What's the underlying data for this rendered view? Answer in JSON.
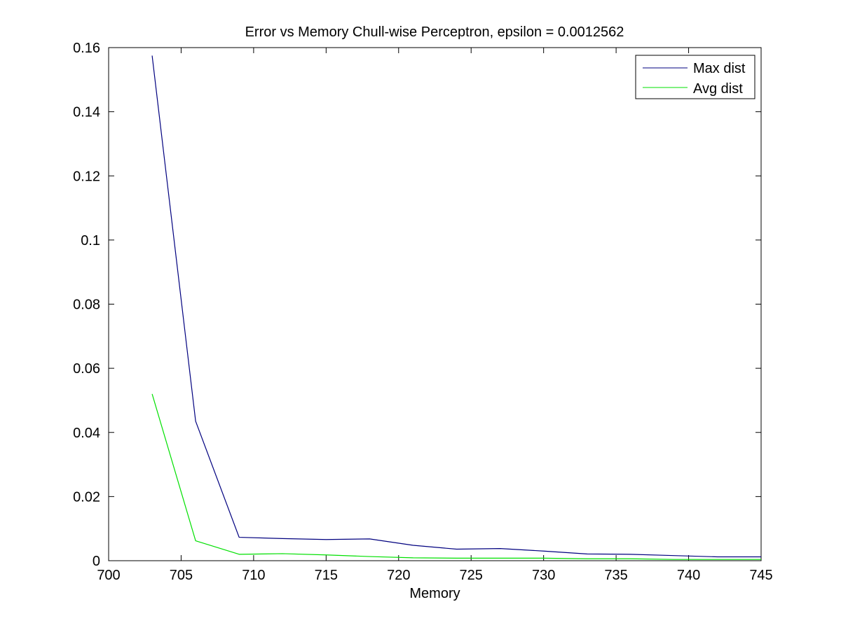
{
  "chart_data": {
    "type": "line",
    "title": "Error vs Memory Chull-wise Perceptron, epsilon = 0.0012562",
    "xlabel": "Memory",
    "ylabel": "",
    "xlim": [
      700,
      745
    ],
    "ylim": [
      0,
      0.16
    ],
    "xticks": [
      700,
      705,
      710,
      715,
      720,
      725,
      730,
      735,
      740,
      745
    ],
    "xtick_labels": [
      "700",
      "705",
      "710",
      "715",
      "720",
      "725",
      "730",
      "735",
      "740",
      "745"
    ],
    "yticks": [
      0,
      0.02,
      0.04,
      0.06,
      0.08,
      0.1,
      0.12,
      0.14,
      0.16
    ],
    "ytick_labels": [
      "0",
      "0.02",
      "0.04",
      "0.06",
      "0.08",
      "0.1",
      "0.12",
      "0.14",
      "0.16"
    ],
    "grid": false,
    "legend_position": "top-right",
    "x": [
      703,
      706,
      709,
      712,
      715,
      718,
      721,
      724,
      727,
      730,
      733,
      736,
      739,
      742,
      745
    ],
    "series": [
      {
        "name": "Max dist",
        "color": "#00007f",
        "values": [
          0.1575,
          0.0435,
          0.0073,
          0.0069,
          0.0066,
          0.0068,
          0.0048,
          0.0036,
          0.0038,
          0.003,
          0.0021,
          0.002,
          0.0016,
          0.0012,
          0.0012
        ]
      },
      {
        "name": "Avg dist",
        "color": "#00e000",
        "values": [
          0.052,
          0.0062,
          0.002,
          0.0022,
          0.0018,
          0.0013,
          0.0009,
          0.0008,
          0.0008,
          0.0008,
          0.0006,
          0.0006,
          0.0004,
          0.0004,
          0.0004
        ]
      }
    ]
  }
}
